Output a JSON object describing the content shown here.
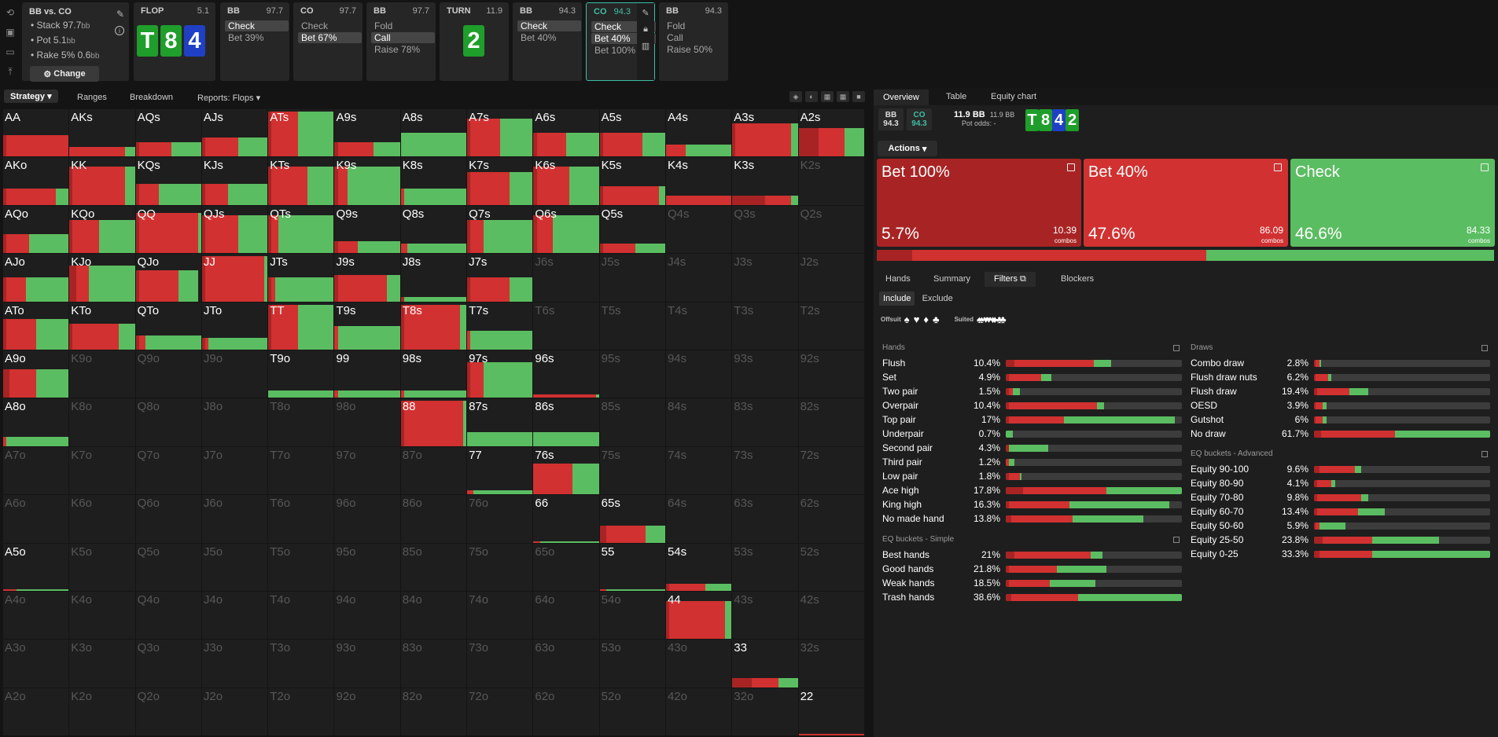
{
  "colors": {
    "red": "#d13131",
    "darkred": "#a82424",
    "green": "#5bbd62",
    "blue": "#1f40c4",
    "cardgreen": "#1f9e2b",
    "teal": "#3fbea4"
  },
  "sidebar_icons": [
    "refresh-icon",
    "save-icon",
    "gamepad-icon",
    "export-icon"
  ],
  "matchup": {
    "title": "BB vs. CO",
    "stack": "Stack 97.7",
    "stack_unit": "bb",
    "pot": "Pot 5.1",
    "pot_unit": "bb",
    "rake": "Rake 5% 0.6",
    "rake_unit": "bb",
    "change": "Change"
  },
  "history": [
    {
      "pos": "FLOP",
      "val": "5.1",
      "cards": [
        "T",
        "8",
        "4"
      ],
      "card_colors": [
        "#1f9e2b",
        "#1f9e2b",
        "#1f40c4"
      ],
      "actions": []
    },
    {
      "pos": "BB",
      "val": "97.7",
      "actions": [
        {
          "label": "Check",
          "sel": true
        },
        {
          "label": "Bet 39%",
          "sel": false
        }
      ]
    },
    {
      "pos": "CO",
      "val": "97.7",
      "actions": [
        {
          "label": "Check",
          "sel": false
        },
        {
          "label": "Bet 67%",
          "sel": true
        }
      ]
    },
    {
      "pos": "BB",
      "val": "97.7",
      "actions": [
        {
          "label": "Fold",
          "sel": false
        },
        {
          "label": "Call",
          "sel": true
        },
        {
          "label": "Raise 78%",
          "sel": false
        }
      ]
    },
    {
      "pos": "TURN",
      "val": "11.9",
      "cards": [
        "2"
      ],
      "card_colors": [
        "#1f9e2b"
      ],
      "actions": []
    },
    {
      "pos": "BB",
      "val": "94.3",
      "actions": [
        {
          "label": "Check",
          "sel": true
        },
        {
          "label": "Bet 40%",
          "sel": false
        }
      ]
    },
    {
      "pos": "CO",
      "val": "94.3",
      "active": true,
      "actions": [
        {
          "label": "Check",
          "sel": true
        },
        {
          "label": "Bet 40%",
          "sel": true
        },
        {
          "label": "Bet 100%",
          "sel": false
        }
      ]
    },
    {
      "pos": "BB",
      "val": "94.3",
      "actions": [
        {
          "label": "Fold",
          "sel": false
        },
        {
          "label": "Call",
          "sel": false
        },
        {
          "label": "Raise 50%",
          "sel": false
        }
      ]
    }
  ],
  "left_tabs": {
    "strategy": "Strategy",
    "ranges": "Ranges",
    "breakdown": "Breakdown",
    "reports": "Reports: Flops"
  },
  "grid": [
    [
      "AA",
      "AKs",
      "AQs",
      "AJs",
      "ATs",
      "A9s",
      "A8s",
      "A7s",
      "A6s",
      "A5s",
      "A4s",
      "A3s",
      "A2s"
    ],
    [
      "AKo",
      "KK",
      "KQs",
      "KJs",
      "KTs",
      "K9s",
      "K8s",
      "K7s",
      "K6s",
      "K5s",
      "K4s",
      "K3s",
      "K2s"
    ],
    [
      "AQo",
      "KQo",
      "QQ",
      "QJs",
      "QTs",
      "Q9s",
      "Q8s",
      "Q7s",
      "Q6s",
      "Q5s",
      "Q4s",
      "Q3s",
      "Q2s"
    ],
    [
      "AJo",
      "KJo",
      "QJo",
      "JJ",
      "JTs",
      "J9s",
      "J8s",
      "J7s",
      "J6s",
      "J5s",
      "J4s",
      "J3s",
      "J2s"
    ],
    [
      "ATo",
      "KTo",
      "QTo",
      "JTo",
      "TT",
      "T9s",
      "T8s",
      "T7s",
      "T6s",
      "T5s",
      "T4s",
      "T3s",
      "T2s"
    ],
    [
      "A9o",
      "K9o",
      "Q9o",
      "J9o",
      "T9o",
      "99",
      "98s",
      "97s",
      "96s",
      "95s",
      "94s",
      "93s",
      "92s"
    ],
    [
      "A8o",
      "K8o",
      "Q8o",
      "J8o",
      "T8o",
      "98o",
      "88",
      "87s",
      "86s",
      "85s",
      "84s",
      "83s",
      "82s"
    ],
    [
      "A7o",
      "K7o",
      "Q7o",
      "J7o",
      "T7o",
      "97o",
      "87o",
      "77",
      "76s",
      "75s",
      "74s",
      "73s",
      "72s"
    ],
    [
      "A6o",
      "K6o",
      "Q6o",
      "J6o",
      "T6o",
      "96o",
      "86o",
      "76o",
      "66",
      "65s",
      "64s",
      "63s",
      "62s"
    ],
    [
      "A5o",
      "K5o",
      "Q5o",
      "J5o",
      "T5o",
      "95o",
      "85o",
      "75o",
      "65o",
      "55",
      "54s",
      "53s",
      "52s"
    ],
    [
      "A4o",
      "K4o",
      "Q4o",
      "J4o",
      "T4o",
      "94o",
      "84o",
      "74o",
      "64o",
      "54o",
      "44",
      "43s",
      "42s"
    ],
    [
      "A3o",
      "K3o",
      "Q3o",
      "J3o",
      "T3o",
      "93o",
      "83o",
      "73o",
      "63o",
      "53o",
      "43o",
      "33",
      "32s"
    ],
    [
      "A2o",
      "K2o",
      "Q2o",
      "J2o",
      "T2o",
      "92o",
      "82o",
      "72o",
      "62o",
      "52o",
      "42o",
      "32o",
      "22"
    ]
  ],
  "cell_strats": {
    "AA": [
      0.45,
      0.05,
      0.95,
      0
    ],
    "AKs": [
      0.2,
      0,
      0.85,
      0.15
    ],
    "AQs": [
      0.3,
      0.05,
      0.5,
      0.45
    ],
    "AJs": [
      0.4,
      0.05,
      0.5,
      0.45
    ],
    "ATs": [
      0.95,
      0.05,
      0.4,
      0.55
    ],
    "A9s": [
      0.3,
      0.05,
      0.55,
      0.4
    ],
    "A8s": [
      0.5,
      0,
      0,
      1
    ],
    "A7s": [
      0.8,
      0.05,
      0.45,
      0.5
    ],
    "A6s": [
      0.5,
      0.05,
      0.45,
      0.5
    ],
    "A5s": [
      0.5,
      0.05,
      0.6,
      0.35
    ],
    "A4s": [
      0.25,
      0,
      0.3,
      0.7
    ],
    "A3s": [
      0.7,
      0.05,
      0.85,
      0.1
    ],
    "A2s": [
      0.6,
      0.3,
      0.4,
      0.3
    ],
    "AKo": [
      0.35,
      0.05,
      0.75,
      0.2
    ],
    "KK": [
      0.8,
      0.05,
      0.8,
      0.15
    ],
    "KQs": [
      0.45,
      0.05,
      0.3,
      0.65
    ],
    "KJs": [
      0.45,
      0.05,
      0.35,
      0.6
    ],
    "KTs": [
      0.8,
      0.05,
      0.55,
      0.4
    ],
    "K9s": [
      0.8,
      0.05,
      0.15,
      0.8
    ],
    "K8s": [
      0.35,
      0,
      0.05,
      0.95
    ],
    "K7s": [
      0.7,
      0.05,
      0.6,
      0.35
    ],
    "K6s": [
      0.8,
      0.05,
      0.5,
      0.45
    ],
    "K5s": [
      0.4,
      0.05,
      0.85,
      0.1
    ],
    "K4s": [
      0.2,
      0,
      1,
      0
    ],
    "K3s": [
      0.2,
      0.5,
      0.4,
      0.1
    ],
    "AQo": [
      0.4,
      0.05,
      0.35,
      0.6
    ],
    "KQo": [
      0.7,
      0.05,
      0.4,
      0.55
    ],
    "QQ": [
      0.85,
      0.05,
      0.9,
      0.05
    ],
    "QJs": [
      0.8,
      0.05,
      0.5,
      0.45
    ],
    "QTs": [
      0.8,
      0.05,
      0.1,
      0.85
    ],
    "Q9s": [
      0.25,
      0.05,
      0.3,
      0.65
    ],
    "Q8s": [
      0.2,
      0,
      0.1,
      0.9
    ],
    "Q7s": [
      0.7,
      0.05,
      0.2,
      0.75
    ],
    "Q6s": [
      0.8,
      0.05,
      0.25,
      0.7
    ],
    "Q5s": [
      0.2,
      0.05,
      0.5,
      0.45
    ],
    "AJo": [
      0.5,
      0.05,
      0.3,
      0.65
    ],
    "KJo": [
      0.75,
      0.1,
      0.2,
      0.7
    ],
    "QJo": [
      0.65,
      0.05,
      0.6,
      0.3
    ],
    "JJ": [
      0.95,
      0.05,
      0.9,
      0.05
    ],
    "JTs": [
      0.5,
      0.05,
      0.05,
      0.9
    ],
    "J9s": [
      0.55,
      0.05,
      0.75,
      0.2
    ],
    "J8s": [
      0.1,
      0.05,
      0,
      0.95
    ],
    "J7s": [
      0.5,
      0.05,
      0.6,
      0.35
    ],
    "ATo": [
      0.65,
      0.05,
      0.45,
      0.5
    ],
    "KTo": [
      0.55,
      0.05,
      0.7,
      0.25
    ],
    "QTo": [
      0.3,
      0.05,
      0.1,
      0.85
    ],
    "JTo": [
      0.25,
      0.05,
      0.05,
      0.9
    ],
    "TT": [
      0.95,
      0.05,
      0.4,
      0.55
    ],
    "T9s": [
      0.5,
      0,
      0.05,
      0.95
    ],
    "T8s": [
      0.95,
      0.05,
      0.85,
      0.1
    ],
    "T7s": [
      0.4,
      0,
      0.05,
      0.95
    ],
    "A9o": [
      0.6,
      0.1,
      0.4,
      0.5
    ],
    "T9o": [
      0.15,
      0,
      0,
      1
    ],
    "99": [
      0.15,
      0,
      0.05,
      0.95
    ],
    "98s": [
      0.15,
      0,
      0.05,
      0.95
    ],
    "97s": [
      0.75,
      0.05,
      0.2,
      0.75
    ],
    "96s": [
      0.08,
      0,
      0.95,
      0.05
    ],
    "A8o": [
      0.2,
      0,
      0.05,
      0.95
    ],
    "88": [
      0.95,
      0.05,
      0.9,
      0.05
    ],
    "87s": [
      0.3,
      0,
      0,
      1
    ],
    "86s": [
      0.3,
      0,
      0,
      1
    ],
    "77": [
      0.08,
      0,
      0.1,
      0.9
    ],
    "76s": [
      0.65,
      0,
      0.6,
      0.4
    ],
    "66": [
      0.03,
      0,
      0.1,
      0.9
    ],
    "65s": [
      0.35,
      0.1,
      0.6,
      0.3
    ],
    "A5o": [
      0.04,
      0,
      0.2,
      0.8
    ],
    "55": [
      0.04,
      0,
      0.1,
      0.9
    ],
    "54s": [
      0.15,
      0.05,
      0.55,
      0.4
    ],
    "44": [
      0.8,
      0.05,
      0.85,
      0.1
    ],
    "33": [
      0.2,
      0.3,
      0.4,
      0.3
    ],
    "22": [
      0.03,
      0,
      1,
      0
    ]
  },
  "right_tabs": {
    "overview": "Overview",
    "table": "Table",
    "equity": "Equity chart"
  },
  "positions": [
    {
      "name": "BB",
      "val": "94.3"
    },
    {
      "name": "CO",
      "val": "94.3"
    }
  ],
  "pot": {
    "main": "11.9 BB",
    "sub": "11.9 BB",
    "odds_label": "Pot odds:",
    "odds_val": "-"
  },
  "board": [
    "T",
    "8",
    "4",
    "2"
  ],
  "board_colors": [
    "#1f9e2b",
    "#1f9e2b",
    "#1f40c4",
    "#1f9e2b"
  ],
  "actions_btn": "Actions",
  "actions": [
    {
      "name": "Bet 100%",
      "pct": "5.7%",
      "pct_val": 5.7,
      "combos": "10.39",
      "combos_label": "combos",
      "color": "#a82424"
    },
    {
      "name": "Bet 40%",
      "pct": "47.6%",
      "pct_val": 47.6,
      "combos": "86.09",
      "combos_label": "combos",
      "color": "#d13131"
    },
    {
      "name": "Check",
      "pct": "46.6%",
      "pct_val": 46.6,
      "combos": "84.33",
      "combos_label": "combos",
      "color": "#5bbd62"
    }
  ],
  "sub_tabs": {
    "hands": "Hands",
    "summary": "Summary",
    "filters": "Filters",
    "blockers": "Blockers"
  },
  "include": "Include",
  "exclude": "Exclude",
  "offsuit_label": "Offsuit",
  "suited_label": "Suited",
  "offsuit_suits": [
    "♠",
    "♥",
    "♦",
    "♣"
  ],
  "suited_suits": [
    "♠♠",
    "♥♥",
    "♦♦",
    "♣♣"
  ],
  "hands_title": "Hands",
  "hands": [
    {
      "name": "Flush",
      "pct": "10.4%",
      "bar": [
        0.05,
        0.45,
        0.1
      ]
    },
    {
      "name": "Set",
      "pct": "4.9%",
      "bar": [
        0.02,
        0.18,
        0.06
      ]
    },
    {
      "name": "Two pair",
      "pct": "1.5%",
      "bar": [
        0.02,
        0.02,
        0.04
      ]
    },
    {
      "name": "Overpair",
      "pct": "10.4%",
      "bar": [
        0.02,
        0.5,
        0.04
      ]
    },
    {
      "name": "Top pair",
      "pct": "17%",
      "bar": [
        0.02,
        0.31,
        0.63
      ]
    },
    {
      "name": "Underpair",
      "pct": "0.7%",
      "bar": [
        0,
        0,
        0.04
      ]
    },
    {
      "name": "Second pair",
      "pct": "4.3%",
      "bar": [
        0.02,
        0,
        0.22
      ]
    },
    {
      "name": "Third pair",
      "pct": "1.2%",
      "bar": [
        0,
        0.02,
        0.03
      ]
    },
    {
      "name": "Low pair",
      "pct": "1.8%",
      "bar": [
        0.02,
        0.06,
        0.01
      ]
    },
    {
      "name": "Ace high",
      "pct": "17.8%",
      "bar": [
        0.1,
        0.47,
        0.43
      ]
    },
    {
      "name": "King high",
      "pct": "16.3%",
      "bar": [
        0.02,
        0.34,
        0.57
      ]
    },
    {
      "name": "No made hand",
      "pct": "13.8%",
      "bar": [
        0.03,
        0.35,
        0.4
      ]
    }
  ],
  "eq_simple_title": "EQ buckets - Simple",
  "eq_simple": [
    {
      "name": "Best hands",
      "pct": "21%",
      "bar": [
        0.05,
        0.43,
        0.07
      ]
    },
    {
      "name": "Good hands",
      "pct": "21.8%",
      "bar": [
        0.02,
        0.27,
        0.28
      ]
    },
    {
      "name": "Weak hands",
      "pct": "18.5%",
      "bar": [
        0.02,
        0.23,
        0.26
      ]
    },
    {
      "name": "Trash hands",
      "pct": "38.6%",
      "bar": [
        0.03,
        0.38,
        0.59
      ]
    }
  ],
  "draws_title": "Draws",
  "draws": [
    {
      "name": "Combo draw",
      "pct": "2.8%",
      "bar": [
        0.01,
        0.02,
        0.01
      ]
    },
    {
      "name": "Flush draw nuts",
      "pct": "6.2%",
      "bar": [
        0.01,
        0.07,
        0.02
      ]
    },
    {
      "name": "Flush draw",
      "pct": "19.4%",
      "bar": [
        0.02,
        0.18,
        0.11
      ]
    },
    {
      "name": "OESD",
      "pct": "3.9%",
      "bar": [
        0.01,
        0.04,
        0.02
      ]
    },
    {
      "name": "Gutshot",
      "pct": "6%",
      "bar": [
        0.01,
        0.04,
        0.02
      ]
    },
    {
      "name": "No draw",
      "pct": "61.7%",
      "bar": [
        0.04,
        0.42,
        0.54
      ]
    }
  ],
  "eq_adv_title": "EQ buckets - Advanced",
  "eq_adv": [
    {
      "name": "Equity 90-100",
      "pct": "9.6%",
      "bar": [
        0.03,
        0.2,
        0.04
      ]
    },
    {
      "name": "Equity 80-90",
      "pct": "4.1%",
      "bar": [
        0.02,
        0.08,
        0.02
      ]
    },
    {
      "name": "Equity 70-80",
      "pct": "9.8%",
      "bar": [
        0.02,
        0.25,
        0.04
      ]
    },
    {
      "name": "Equity 60-70",
      "pct": "13.4%",
      "bar": [
        0.02,
        0.23,
        0.15
      ]
    },
    {
      "name": "Equity 50-60",
      "pct": "5.9%",
      "bar": [
        0.01,
        0.02,
        0.15
      ]
    },
    {
      "name": "Equity 25-50",
      "pct": "23.8%",
      "bar": [
        0.05,
        0.28,
        0.38
      ]
    },
    {
      "name": "Equity 0-25",
      "pct": "33.3%",
      "bar": [
        0.03,
        0.3,
        0.67
      ]
    }
  ]
}
